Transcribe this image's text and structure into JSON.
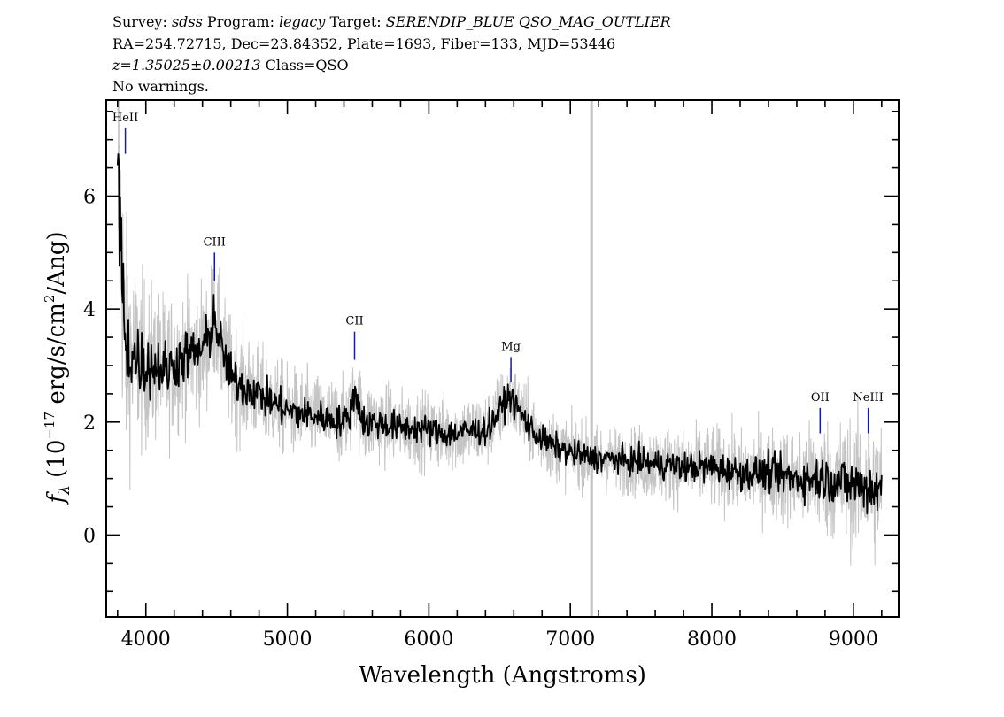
{
  "header": {
    "line1": {
      "survey_key": "Survey:",
      "survey_val": "sdss",
      "program_key": "Program:",
      "program_val": "legacy",
      "target_key": "Target:",
      "target_val": "SERENDIP_BLUE QSO_MAG_OUTLIER"
    },
    "line2": "RA=254.72715, Dec=23.84352, Plate=1693, Fiber=133, MJD=53446",
    "line3": {
      "redshift": "z=1.35025±0.00213",
      "class": "Class=QSO"
    },
    "line4": "No warnings."
  },
  "chart_data": {
    "type": "line",
    "xlabel": "Wavelength (Angstroms)",
    "ylabel_parts": {
      "f": "f",
      "sub": "λ",
      "pre": " (10",
      "exp1": "−17",
      "mid": " erg/s/cm",
      "exp2": "2",
      "post": "/Ang)"
    },
    "xlim": [
      3720,
      9320
    ],
    "ylim": [
      -1.45,
      7.7
    ],
    "x_ticks": [
      4000,
      5000,
      6000,
      7000,
      8000,
      9000
    ],
    "x_tick_labels": [
      "4000",
      "5000",
      "6000",
      "7000",
      "8000",
      "9000"
    ],
    "y_ticks": [
      0,
      2,
      4,
      6
    ],
    "y_tick_labels": [
      "0",
      "2",
      "4",
      "6"
    ],
    "x_minor_step": 200,
    "y_minor_step": 0.5,
    "series": [
      {
        "role": "flux",
        "color": "#000000",
        "x": [
          3800,
          3820,
          3850,
          3900,
          3950,
          4000,
          4050,
          4100,
          4150,
          4200,
          4250,
          4300,
          4350,
          4400,
          4450,
          4480,
          4500,
          4520,
          4550,
          4600,
          4650,
          4700,
          4750,
          4800,
          4850,
          4900,
          5000,
          5100,
          5200,
          5300,
          5400,
          5450,
          5480,
          5500,
          5550,
          5600,
          5700,
          5800,
          5900,
          6000,
          6100,
          6200,
          6300,
          6400,
          6450,
          6500,
          6550,
          6580,
          6600,
          6650,
          6700,
          6750,
          6800,
          6900,
          7000,
          7100,
          7200,
          7300,
          7400,
          7500,
          7600,
          7700,
          7800,
          7900,
          8000,
          8100,
          8200,
          8300,
          8400,
          8500,
          8600,
          8700,
          8800,
          8900,
          9000,
          9100,
          9200
        ],
        "y": [
          6.3,
          5.4,
          3.4,
          3.2,
          3.1,
          3.0,
          3.0,
          3.0,
          2.9,
          3.05,
          3.1,
          3.2,
          3.2,
          3.3,
          3.5,
          3.9,
          3.7,
          3.4,
          3.2,
          2.8,
          2.7,
          2.6,
          2.6,
          2.5,
          2.4,
          2.35,
          2.2,
          2.15,
          2.1,
          2.05,
          2.0,
          2.2,
          2.6,
          2.3,
          1.95,
          2.0,
          1.95,
          1.9,
          1.9,
          1.85,
          1.8,
          1.8,
          1.85,
          1.85,
          2.0,
          2.2,
          2.4,
          2.45,
          2.35,
          2.15,
          1.95,
          1.8,
          1.7,
          1.55,
          1.45,
          1.4,
          1.35,
          1.35,
          1.3,
          1.3,
          1.25,
          1.25,
          1.2,
          1.2,
          1.2,
          1.15,
          1.1,
          1.1,
          1.1,
          1.05,
          1.0,
          1.0,
          1.0,
          0.95,
          0.9,
          0.85,
          0.8
        ]
      },
      {
        "role": "error",
        "color": "#c4c4c4",
        "x": [
          3800,
          3820,
          3850,
          3900,
          4000,
          4100,
          4200,
          4300,
          4400,
          4500,
          4600,
          4700,
          4800,
          4900,
          5000,
          5200,
          5400,
          5600,
          5800,
          6000,
          6200,
          6400,
          6500,
          6600,
          6700,
          6800,
          7000,
          7200,
          7400,
          7600,
          7800,
          8000,
          8200,
          8400,
          8600,
          8800,
          9000,
          9200
        ],
        "y": [
          2.5,
          2.0,
          1.5,
          1.2,
          1.0,
          0.9,
          0.85,
          0.8,
          0.8,
          0.75,
          0.7,
          0.65,
          0.6,
          0.55,
          0.55,
          0.5,
          0.5,
          0.5,
          0.45,
          0.45,
          0.45,
          0.45,
          0.45,
          0.45,
          0.45,
          0.4,
          0.4,
          0.4,
          0.4,
          0.45,
          0.45,
          0.5,
          0.5,
          0.55,
          0.6,
          0.7,
          0.8,
          0.9
        ]
      }
    ],
    "marker_line": {
      "x": 7150,
      "color": "#c0c0c0"
    },
    "emission_lines": [
      {
        "label": "HeII",
        "x": 3855,
        "y0": 6.75,
        "y1": 7.2
      },
      {
        "label": "CIII",
        "x": 4485,
        "y0": 4.5,
        "y1": 5.0
      },
      {
        "label": "CII",
        "x": 5475,
        "y0": 3.1,
        "y1": 3.6
      },
      {
        "label": "Mg",
        "x": 6580,
        "y0": 2.7,
        "y1": 3.15
      },
      {
        "label": "OII",
        "x": 8765,
        "y0": 1.8,
        "y1": 2.25
      },
      {
        "label": "NeIII",
        "x": 9105,
        "y0": 1.8,
        "y1": 2.25
      }
    ],
    "emission_line_color": "#1a1aa8"
  }
}
